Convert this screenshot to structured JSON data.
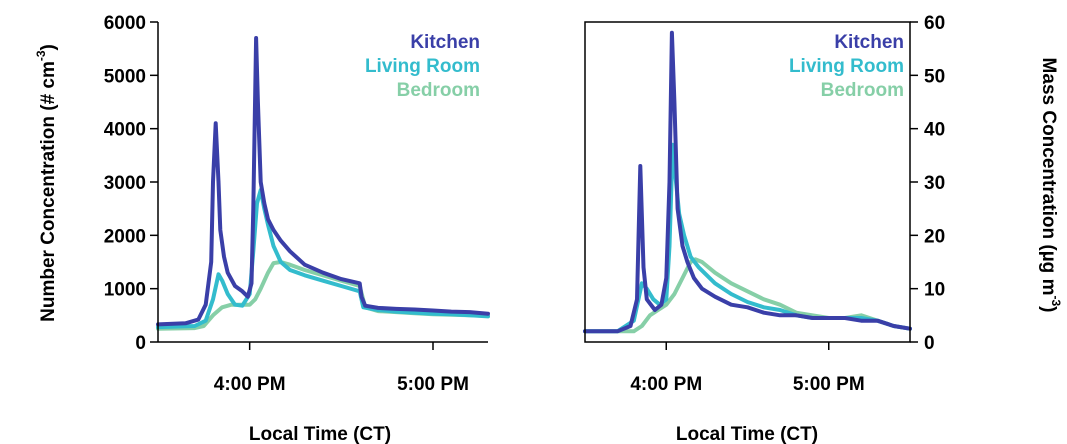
{
  "colors": {
    "kitchen": "#3a3fa8",
    "living_room": "#33bccd",
    "bedroom": "#86cfa7",
    "axis": "#000000"
  },
  "chart_data": [
    {
      "type": "line",
      "panel": "left",
      "xlabel": "Local Time (CT)",
      "ylabel": "Number Concentration (# cm",
      "ylabel_superscript": "-3",
      "ylabel_close": ")",
      "x_unit": "hours (local time, CT)",
      "xlim": [
        15.5,
        17.3
      ],
      "ylim": [
        0,
        6000
      ],
      "xticks": [
        {
          "value": 16.0,
          "label": "4:00 PM"
        },
        {
          "value": 17.0,
          "label": "5:00 PM"
        }
      ],
      "yticks": [
        0,
        1000,
        2000,
        3000,
        4000,
        5000,
        6000
      ],
      "ytick_labels": [
        "0",
        "1000",
        "2000",
        "3000",
        "4000",
        "5000",
        "6000"
      ],
      "legend_position": "top-right",
      "grid": false,
      "series": [
        {
          "name": "Kitchen",
          "color_key": "kitchen",
          "x": [
            15.5,
            15.65,
            15.72,
            15.76,
            15.79,
            15.8,
            15.815,
            15.83,
            15.84,
            15.86,
            15.88,
            15.92,
            15.96,
            15.99,
            16.01,
            16.02,
            16.035,
            16.045,
            16.06,
            16.08,
            16.1,
            16.13,
            16.17,
            16.22,
            16.3,
            16.4,
            16.5,
            16.6,
            16.61,
            16.63,
            16.7,
            16.8,
            16.9,
            17.0,
            17.1,
            17.2,
            17.3
          ],
          "y": [
            330,
            350,
            420,
            700,
            1500,
            3000,
            4100,
            3000,
            2100,
            1600,
            1300,
            1050,
            950,
            850,
            1100,
            2500,
            5700,
            4500,
            3000,
            2600,
            2300,
            2100,
            1900,
            1700,
            1450,
            1300,
            1180,
            1100,
            850,
            680,
            640,
            620,
            610,
            590,
            570,
            560,
            530
          ]
        },
        {
          "name": "Living Room",
          "color_key": "living_room",
          "x": [
            15.5,
            15.7,
            15.76,
            15.8,
            15.83,
            15.85,
            15.88,
            15.92,
            15.96,
            16.0,
            16.02,
            16.04,
            16.06,
            16.08,
            16.1,
            16.13,
            16.17,
            16.22,
            16.3,
            16.4,
            16.5,
            16.6,
            16.62,
            16.7,
            16.8,
            16.9,
            17.0,
            17.1,
            17.2,
            17.3
          ],
          "y": [
            280,
            300,
            400,
            800,
            1270,
            1150,
            900,
            700,
            680,
            900,
            1700,
            2600,
            2850,
            2500,
            2200,
            1800,
            1500,
            1350,
            1250,
            1150,
            1050,
            950,
            650,
            600,
            570,
            550,
            530,
            520,
            500,
            480
          ]
        },
        {
          "name": "Bedroom",
          "color_key": "bedroom",
          "x": [
            15.5,
            15.7,
            15.75,
            15.8,
            15.85,
            15.9,
            15.95,
            16.0,
            16.03,
            16.06,
            16.1,
            16.13,
            16.17,
            16.22,
            16.3,
            16.4,
            16.5,
            16.6,
            16.63,
            16.7,
            16.8,
            16.9,
            17.0,
            17.1,
            17.2,
            17.3
          ],
          "y": [
            250,
            260,
            300,
            500,
            650,
            700,
            700,
            700,
            800,
            1000,
            1300,
            1480,
            1500,
            1450,
            1350,
            1250,
            1150,
            1050,
            650,
            580,
            560,
            540,
            520,
            510,
            500,
            490
          ]
        }
      ]
    },
    {
      "type": "line",
      "panel": "right",
      "xlabel": "Local Time (CT)",
      "ylabel": "Mass Concentration (µg m",
      "ylabel_superscript": "-3",
      "ylabel_close": ")",
      "x_unit": "hours (local time, CT)",
      "xlim": [
        15.5,
        17.5
      ],
      "ylim": [
        0,
        60
      ],
      "xticks": [
        {
          "value": 16.0,
          "label": "4:00 PM"
        },
        {
          "value": 17.0,
          "label": "5:00 PM"
        }
      ],
      "yticks": [
        0,
        10,
        20,
        30,
        40,
        50,
        60
      ],
      "ytick_labels": [
        "0",
        "10",
        "20",
        "30",
        "40",
        "50",
        "60"
      ],
      "legend_position": "top-right",
      "grid": false,
      "series": [
        {
          "name": "Kitchen",
          "color_key": "kitchen",
          "x": [
            15.5,
            15.7,
            15.78,
            15.82,
            15.84,
            15.86,
            15.88,
            15.93,
            15.97,
            16.0,
            16.02,
            16.035,
            16.05,
            16.07,
            16.1,
            16.13,
            16.17,
            16.22,
            16.3,
            16.4,
            16.5,
            16.6,
            16.7,
            16.8,
            16.9,
            17.0,
            17.1,
            17.2,
            17.3,
            17.4,
            17.5
          ],
          "y": [
            2,
            2,
            3,
            8,
            33,
            14,
            8,
            6,
            7,
            12,
            30,
            58,
            45,
            25,
            18,
            15,
            12,
            10,
            8.5,
            7,
            6.5,
            5.5,
            5,
            5,
            4.5,
            4.5,
            4.5,
            4,
            4,
            3,
            2.5
          ]
        },
        {
          "name": "Living Room",
          "color_key": "living_room",
          "x": [
            15.5,
            15.7,
            15.8,
            15.85,
            15.88,
            15.92,
            15.96,
            16.0,
            16.02,
            16.04,
            16.06,
            16.08,
            16.11,
            16.15,
            16.2,
            16.3,
            16.4,
            16.5,
            16.6,
            16.7,
            16.8,
            16.9,
            17.0,
            17.1,
            17.2,
            17.3,
            17.4,
            17.5
          ],
          "y": [
            2,
            2,
            4,
            11,
            10,
            8,
            7,
            8,
            18,
            37,
            30,
            24,
            20,
            16,
            14,
            11,
            9,
            7.5,
            6.5,
            6,
            5,
            4.5,
            4.5,
            4.5,
            4.5,
            4,
            3,
            2.5
          ]
        },
        {
          "name": "Bedroom",
          "color_key": "bedroom",
          "x": [
            15.5,
            15.7,
            15.8,
            15.85,
            15.9,
            15.95,
            16.0,
            16.05,
            16.1,
            16.15,
            16.18,
            16.22,
            16.3,
            16.4,
            16.5,
            16.6,
            16.7,
            16.8,
            16.9,
            17.0,
            17.1,
            17.2,
            17.3,
            17.4,
            17.5
          ],
          "y": [
            2,
            2,
            2,
            3,
            5,
            6,
            7,
            9,
            12,
            15,
            15.5,
            15,
            13,
            11,
            9.5,
            8,
            7,
            5.5,
            5,
            4.5,
            4.5,
            5,
            4,
            3,
            2.5
          ]
        }
      ]
    }
  ]
}
